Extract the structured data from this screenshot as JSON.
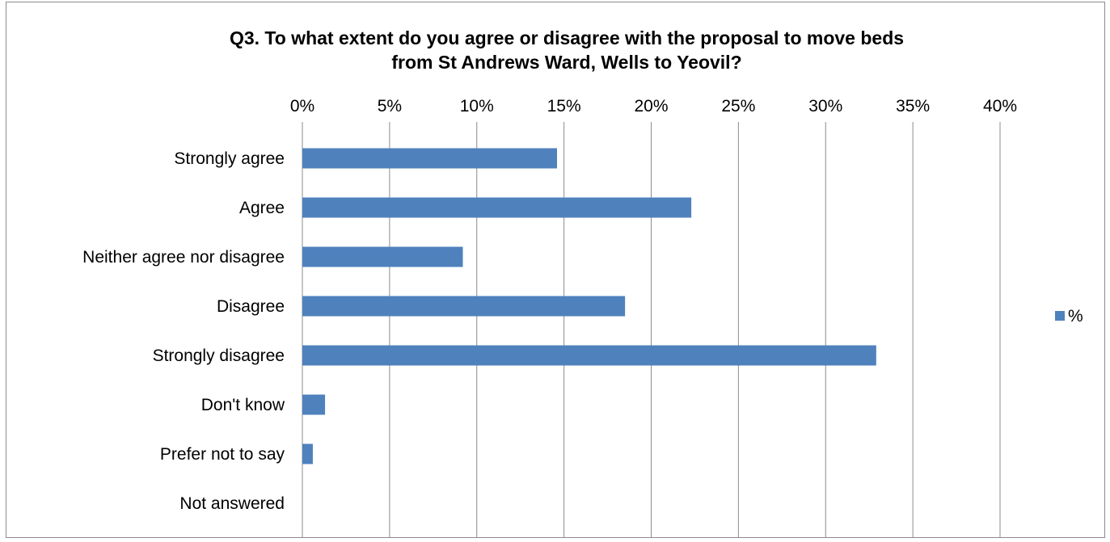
{
  "chart_data": {
    "type": "bar",
    "orientation": "horizontal",
    "title_lines": [
      "Q3. To what extent do you agree or disagree with the proposal to move beds",
      "from St Andrews Ward, Wells to Yeovil?"
    ],
    "categories": [
      "Strongly agree",
      "Agree",
      "Neither agree nor disagree",
      "Disagree",
      "Strongly disagree",
      "Don't know",
      "Prefer not to say",
      "Not answered"
    ],
    "series": [
      {
        "name": "%",
        "color": "#4f81bd",
        "values": [
          14.6,
          22.3,
          9.2,
          18.5,
          32.9,
          1.3,
          0.6,
          0
        ]
      }
    ],
    "x_axis": {
      "min": 0,
      "max": 40,
      "ticks": [
        "0%",
        "5%",
        "10%",
        "15%",
        "20%",
        "25%",
        "30%",
        "35%",
        "40%"
      ],
      "position": "top"
    },
    "grid": "vertical",
    "legend_position": "right"
  }
}
